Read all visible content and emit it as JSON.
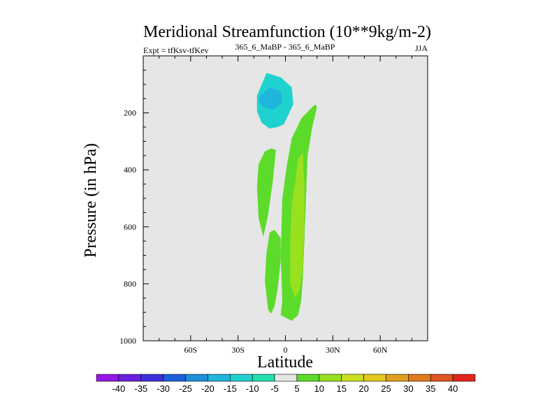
{
  "chart_data": {
    "type": "contour",
    "title": "Meridional Streamfunction (10**9kg/m-2)",
    "subtitle_left": "Expt = tfKsv-tfKev",
    "subtitle_center": "365_6_MaBP - 365_6_MaBP",
    "subtitle_right": "JJA",
    "xlabel": "Latitude",
    "ylabel": "Pressure (in hPa)",
    "xlim": [
      -90,
      90
    ],
    "ylim": [
      1000,
      0
    ],
    "x_ticks": [
      {
        "value": -60,
        "label": "60S"
      },
      {
        "value": -30,
        "label": "30S"
      },
      {
        "value": 0,
        "label": "0"
      },
      {
        "value": 30,
        "label": "30N"
      },
      {
        "value": 60,
        "label": "60N"
      }
    ],
    "y_ticks": [
      {
        "value": 200,
        "label": "200"
      },
      {
        "value": 400,
        "label": "400"
      },
      {
        "value": 600,
        "label": "600"
      },
      {
        "value": 800,
        "label": "800"
      },
      {
        "value": 1000,
        "label": "1000"
      }
    ],
    "background_color": "#e6e6e6",
    "colorbar": {
      "labels": [
        "-40",
        "-35",
        "-30",
        "-25",
        "-20",
        "-15",
        "-10",
        "-5",
        "5",
        "10",
        "15",
        "20",
        "25",
        "30",
        "35",
        "40"
      ],
      "colors": [
        "#9317e6",
        "#6a1fe0",
        "#3b2fd9",
        "#1f5fd9",
        "#1e8ed8",
        "#1fb5dc",
        "#20d2cf",
        "#22dfb0",
        "#e6e6e6",
        "#5ddb2a",
        "#99e01f",
        "#c8e020",
        "#e0c81f",
        "#e0a01f",
        "#e07a1f",
        "#e0541f",
        "#e0261f"
      ]
    },
    "regions": [
      {
        "name": "negative-cell-upper",
        "value_range": [
          -15,
          -5
        ],
        "color": "#20d2cf",
        "outline": [
          [
            -18,
            140
          ],
          [
            -12,
            60
          ],
          [
            -3,
            75
          ],
          [
            4,
            110
          ],
          [
            5,
            170
          ],
          [
            -1,
            240
          ],
          [
            -5,
            250
          ],
          [
            -10,
            255
          ],
          [
            -15,
            235
          ],
          [
            -18,
            195
          ]
        ]
      },
      {
        "name": "negative-cell-core",
        "value_range": [
          -20,
          -15
        ],
        "color": "#1fb5dc",
        "outline": [
          [
            -16,
            140
          ],
          [
            -10,
            110
          ],
          [
            -3,
            125
          ],
          [
            -2,
            165
          ],
          [
            -8,
            190
          ],
          [
            -14,
            180
          ],
          [
            -17,
            160
          ]
        ]
      },
      {
        "name": "positive-cell-northern",
        "value_range": [
          5,
          10
        ],
        "color": "#5ddb2a",
        "outline": [
          [
            4,
            290
          ],
          [
            10,
            220
          ],
          [
            17,
            180
          ],
          [
            19,
            170
          ],
          [
            20,
            180
          ],
          [
            17,
            250
          ],
          [
            14,
            350
          ],
          [
            13,
            500
          ],
          [
            12,
            650
          ],
          [
            11,
            780
          ],
          [
            10,
            860
          ],
          [
            8,
            910
          ],
          [
            4,
            930
          ],
          [
            -3,
            910
          ],
          [
            -2,
            860
          ],
          [
            -3,
            700
          ],
          [
            -2,
            500
          ],
          [
            1,
            380
          ]
        ]
      },
      {
        "name": "positive-cell-core",
        "value_range": [
          10,
          15
        ],
        "color": "#99e01f",
        "outline": [
          [
            6,
            450
          ],
          [
            8,
            360
          ],
          [
            11,
            340
          ],
          [
            12,
            450
          ],
          [
            12,
            600
          ],
          [
            11,
            740
          ],
          [
            9,
            820
          ],
          [
            6,
            850
          ],
          [
            3,
            800
          ],
          [
            3,
            650
          ],
          [
            4,
            520
          ]
        ]
      },
      {
        "name": "positive-cell-southern-upper",
        "value_range": [
          5,
          10
        ],
        "color": "#5ddb2a",
        "outline": [
          [
            -17,
            380
          ],
          [
            -13,
            335
          ],
          [
            -9,
            325
          ],
          [
            -6,
            330
          ],
          [
            -8,
            440
          ],
          [
            -11,
            560
          ],
          [
            -14,
            635
          ],
          [
            -17,
            570
          ],
          [
            -18,
            460
          ]
        ]
      },
      {
        "name": "positive-cell-southern-lower",
        "value_range": [
          5,
          10
        ],
        "color": "#5ddb2a",
        "outline": [
          [
            -13,
            790
          ],
          [
            -12,
            690
          ],
          [
            -10,
            620
          ],
          [
            -7,
            610
          ],
          [
            -3,
            640
          ],
          [
            -3,
            720
          ],
          [
            -5,
            820
          ],
          [
            -7,
            880
          ],
          [
            -9,
            905
          ],
          [
            -11,
            890
          ]
        ]
      }
    ]
  }
}
